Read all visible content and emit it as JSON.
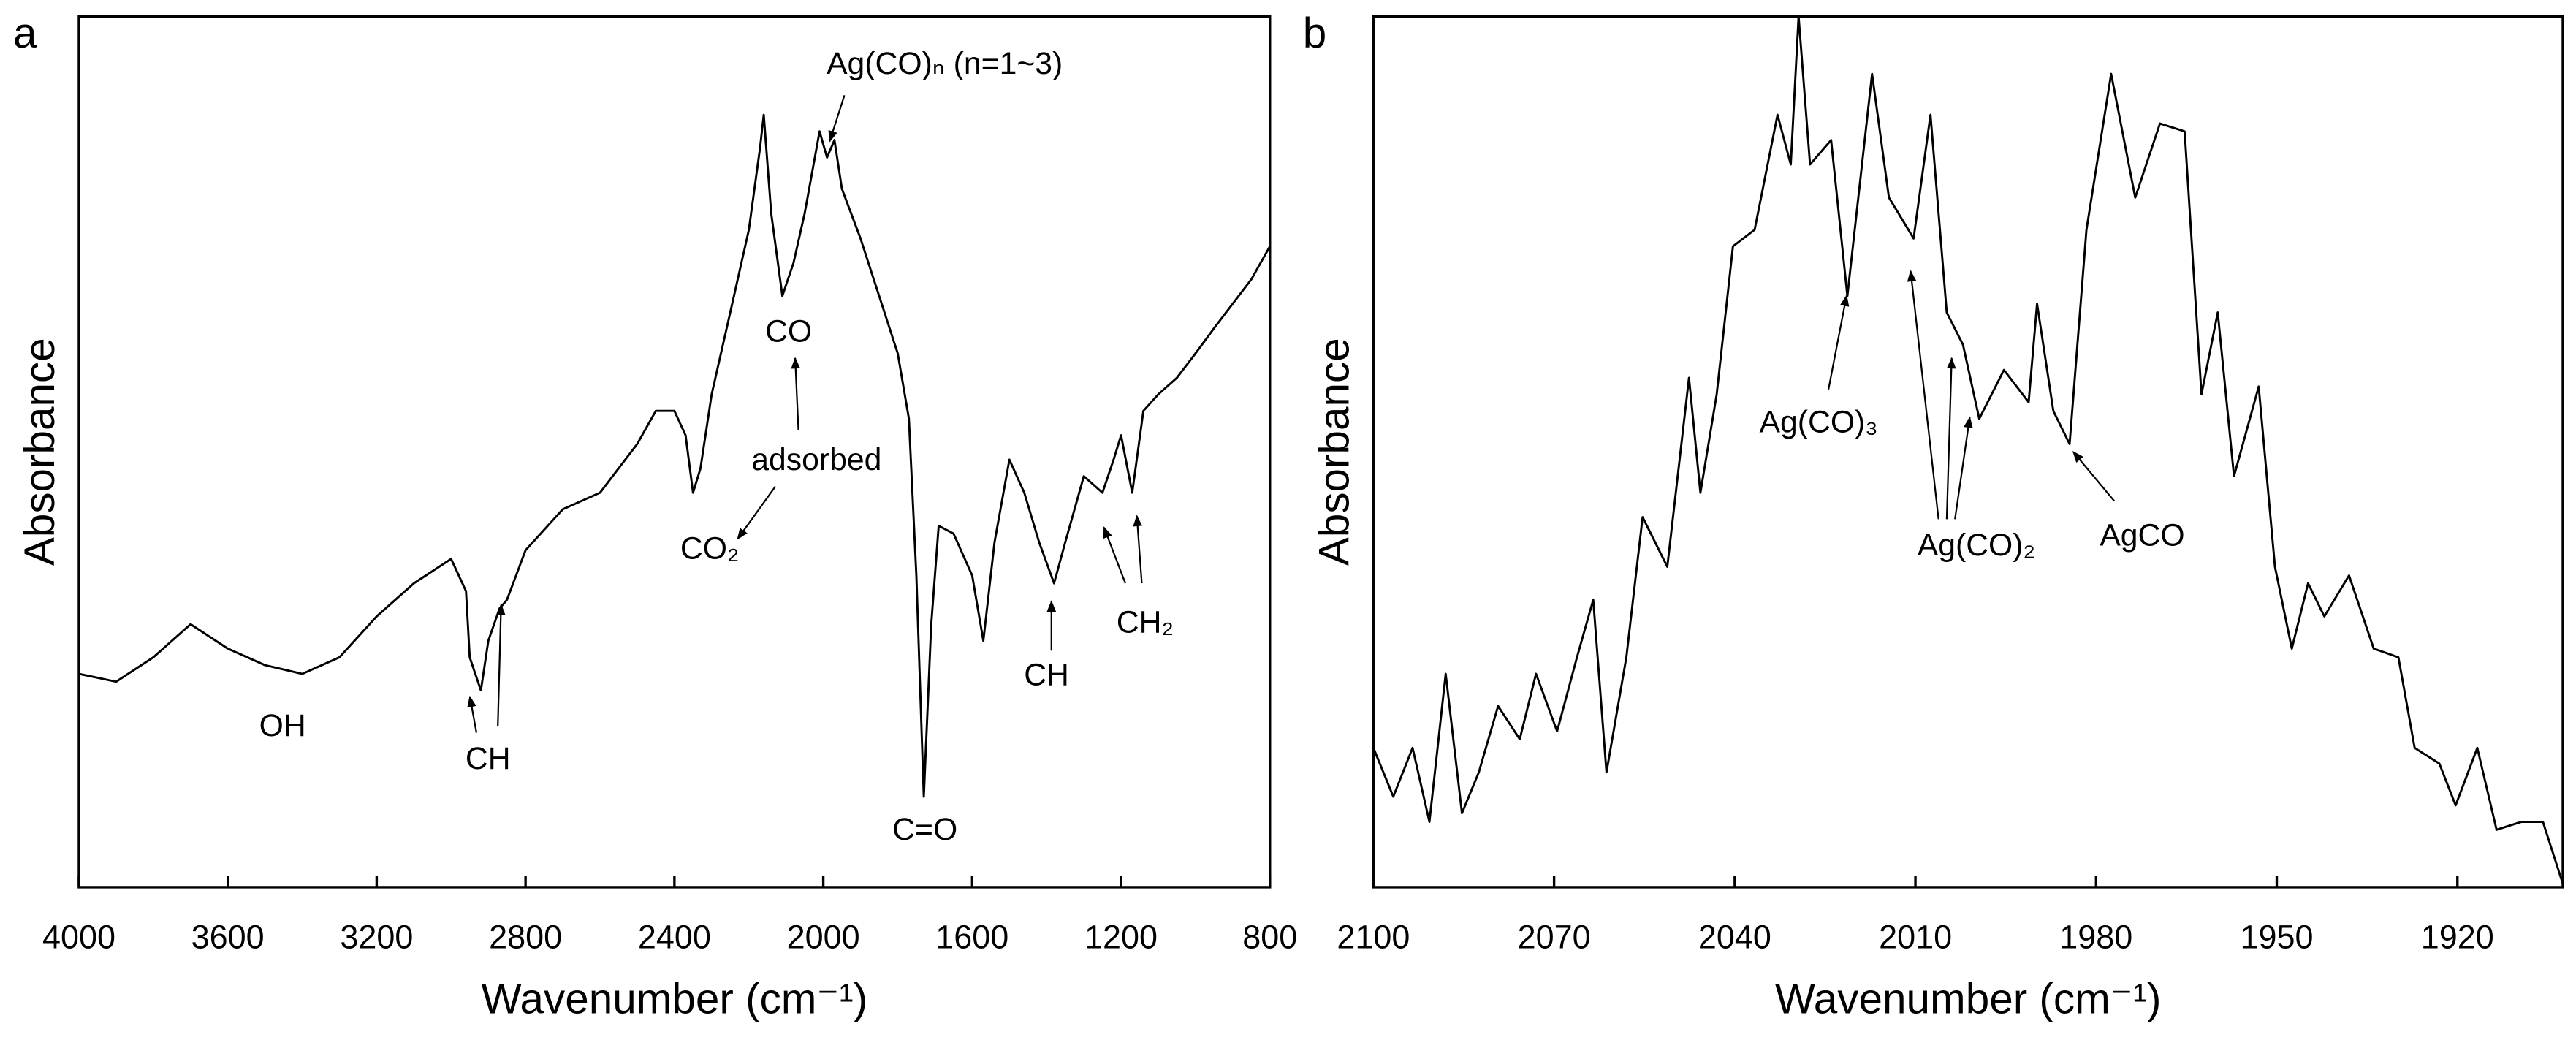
{
  "chart_data": [
    {
      "type": "line",
      "panel": "a",
      "xlabel": "Wavenumber (cm⁻¹)",
      "ylabel": "Absorbance",
      "xlim": [
        4000,
        800
      ],
      "ylim": [
        0,
        100
      ],
      "xticks": [
        4000,
        3600,
        3200,
        2800,
        2400,
        2000,
        1600,
        1200,
        800
      ],
      "color": "#000000",
      "x": [
        4000,
        3900,
        3800,
        3700,
        3600,
        3500,
        3400,
        3300,
        3200,
        3100,
        3000,
        2960,
        2950,
        2920,
        2900,
        2870,
        2850,
        2800,
        2700,
        2600,
        2500,
        2450,
        2400,
        2370,
        2350,
        2330,
        2300,
        2250,
        2200,
        2170,
        2160,
        2140,
        2110,
        2080,
        2050,
        2010,
        1990,
        1970,
        1950,
        1900,
        1850,
        1800,
        1770,
        1750,
        1730,
        1710,
        1690,
        1650,
        1600,
        1570,
        1540,
        1500,
        1460,
        1420,
        1380,
        1350,
        1300,
        1250,
        1220,
        1200,
        1170,
        1140,
        1100,
        1050,
        1000,
        950,
        900,
        850,
        800
      ],
      "values": [
        24.5,
        23.6,
        26.4,
        30.2,
        27.4,
        25.5,
        24.5,
        26.4,
        31.1,
        34.9,
        37.7,
        34.0,
        26.4,
        22.6,
        28.3,
        32.0,
        33.0,
        38.7,
        43.4,
        45.3,
        50.9,
        54.7,
        54.7,
        51.9,
        45.3,
        48.1,
        56.6,
        66.0,
        75.5,
        84.9,
        88.7,
        77.4,
        67.9,
        71.7,
        77.4,
        86.8,
        83.8,
        85.8,
        80.2,
        74.5,
        67.9,
        61.3,
        53.8,
        35.8,
        10.4,
        30.2,
        41.5,
        40.6,
        35.8,
        28.3,
        39.6,
        49.1,
        45.3,
        39.6,
        34.9,
        39.6,
        47.2,
        45.3,
        49.1,
        51.9,
        45.3,
        54.7,
        56.6,
        58.5,
        61.3,
        64.2,
        67.0,
        69.8,
        73.6
      ],
      "annotations": [
        "OH",
        "CH",
        "CO₂",
        "adsorbed",
        "CO",
        "Ag(CO)ₙ (n=1~3)",
        "C=O",
        "CH",
        "CH₂"
      ]
    },
    {
      "type": "line",
      "panel": "b",
      "xlabel": "Wavenumber (cm⁻¹)",
      "ylabel": "Absorbance",
      "xlim": [
        2100,
        1902.5
      ],
      "ylim": [
        0,
        100
      ],
      "xticks": [
        2100,
        2070,
        2040,
        2010,
        1980,
        1950,
        1920
      ],
      "color": "#000000",
      "x": [
        2100,
        2096.7,
        2093.5,
        2090.7,
        2088,
        2085.3,
        2082.5,
        2079.3,
        2075.7,
        2073,
        2069.5,
        2066.2,
        2063.5,
        2061.3,
        2058,
        2055.3,
        2051.2,
        2047.6,
        2045.7,
        2043,
        2040.3,
        2036.7,
        2032.9,
        2030.7,
        2029.4,
        2027.5,
        2024,
        2021.3,
        2017.2,
        2014.4,
        2010.3,
        2007.5,
        2004.8,
        2002.1,
        1999.4,
        1995.3,
        1991.2,
        1989.8,
        1987.1,
        1984.4,
        1981.6,
        1977.5,
        1973.5,
        1969.4,
        1965.3,
        1962.5,
        1959.8,
        1957.1,
        1953,
        1950.3,
        1947.5,
        1944.8,
        1942.1,
        1938,
        1933.9,
        1929.8,
        1927.1,
        1923,
        1920.3,
        1916.7,
        1913.5,
        1909.4,
        1905.8,
        1902.5
      ],
      "values": [
        16.0,
        10.4,
        16.0,
        7.5,
        24.5,
        8.5,
        13.2,
        20.8,
        17.0,
        24.5,
        17.9,
        26.4,
        33.0,
        13.2,
        26.4,
        42.5,
        36.8,
        58.5,
        45.3,
        56.6,
        73.6,
        75.5,
        88.7,
        83.0,
        100,
        83.0,
        85.8,
        67.9,
        93.4,
        79.2,
        74.5,
        88.7,
        66.0,
        62.3,
        53.8,
        59.4,
        55.7,
        67.0,
        54.7,
        50.9,
        75.5,
        93.4,
        79.2,
        87.7,
        86.8,
        56.6,
        66.0,
        47.2,
        57.5,
        36.8,
        27.4,
        34.9,
        31.1,
        35.8,
        27.4,
        26.4,
        16.0,
        14.2,
        9.4,
        16.0,
        6.6,
        7.5,
        7.5,
        0.4
      ],
      "annotations": [
        "Ag(CO)₃",
        "Ag(CO)₂",
        "AgCO"
      ]
    }
  ]
}
